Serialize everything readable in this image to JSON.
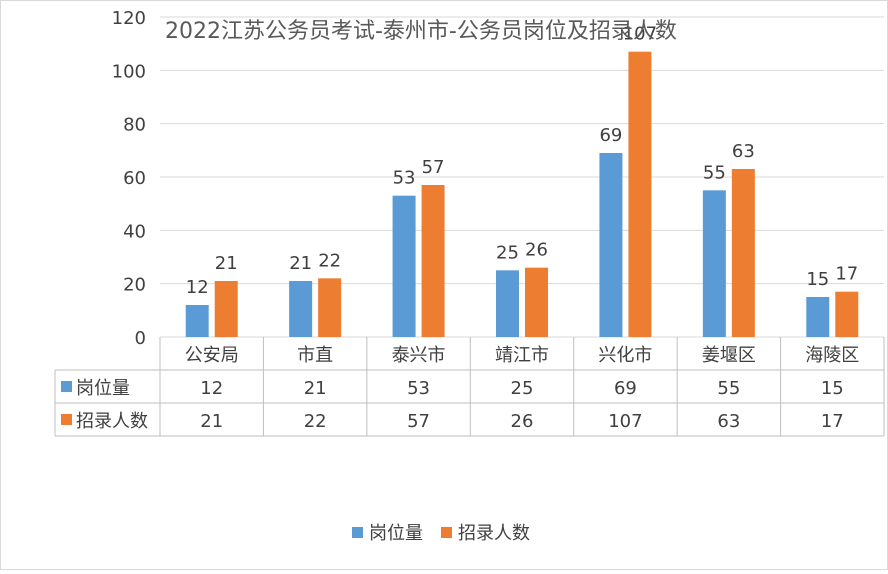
{
  "chart_data": {
    "type": "bar",
    "title": "2022江苏公务员考试-泰州市-公务员岗位及招录人数",
    "categories": [
      "公安局",
      "市直",
      "泰兴市",
      "靖江市",
      "兴化市",
      "姜堰区",
      "海陵区"
    ],
    "series": [
      {
        "name": "岗位量",
        "values": [
          12,
          21,
          53,
          25,
          69,
          55,
          15
        ],
        "color": "#5B9BD5"
      },
      {
        "name": "招录人数",
        "values": [
          21,
          22,
          57,
          26,
          107,
          63,
          17
        ],
        "color": "#ED7D31"
      }
    ],
    "xlabel": "",
    "ylabel": "",
    "ylim": [
      0,
      120
    ],
    "yticks": [
      0,
      20,
      40,
      60,
      80,
      100,
      120
    ],
    "grid": true,
    "data_table": true,
    "legend": "bottom-center"
  }
}
